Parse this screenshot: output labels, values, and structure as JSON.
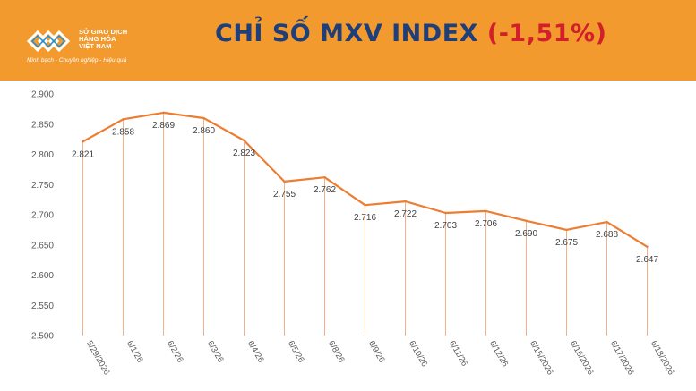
{
  "header": {
    "logo_lines": [
      "SỞ GIAO DỊCH",
      "HÀNG HÓA",
      "VIỆT NAM"
    ],
    "logo_slogan": "Minh bạch - Chuyên nghiệp - Hiệu quả",
    "title_main": "CHỈ SỐ MXV INDEX",
    "title_change": "(-1,51%)",
    "bg_color": "#f39a2e",
    "title_color": "#1f3f7a",
    "change_color": "#d21f2b"
  },
  "chart_data": {
    "type": "line",
    "categories": [
      "5/29/2026",
      "6/1/26",
      "6/2/26",
      "6/3/26",
      "6/4/26",
      "6/5/26",
      "6/8/26",
      "6/9/26",
      "6/10/26",
      "6/11/26",
      "6/12/26",
      "6/15/2026",
      "6/16/2026",
      "6/17/2026",
      "6/18/2026"
    ],
    "values": [
      2821,
      2858,
      2869,
      2860,
      2823,
      2755,
      2762,
      2716,
      2722,
      2703,
      2706,
      2690,
      2675,
      2688,
      2647
    ],
    "value_labels": [
      "2.821",
      "2.858",
      "2.869",
      "2.860",
      "2.823",
      "2.755",
      "2.762",
      "2.716",
      "2.722",
      "2.703",
      "2.706",
      "2.690",
      "2.675",
      "2.688",
      "2.647"
    ],
    "ylim": [
      2500,
      2900
    ],
    "yticks": [
      2500,
      2550,
      2600,
      2650,
      2700,
      2750,
      2800,
      2850,
      2900
    ],
    "ytick_labels": [
      "2.500",
      "2.550",
      "2.600",
      "2.650",
      "2.700",
      "2.750",
      "2.800",
      "2.850",
      "2.900"
    ],
    "line_color": "#ed7d31",
    "drop_line_color": "#f4b183",
    "grid": false,
    "title": "",
    "xlabel": "",
    "ylabel": ""
  }
}
